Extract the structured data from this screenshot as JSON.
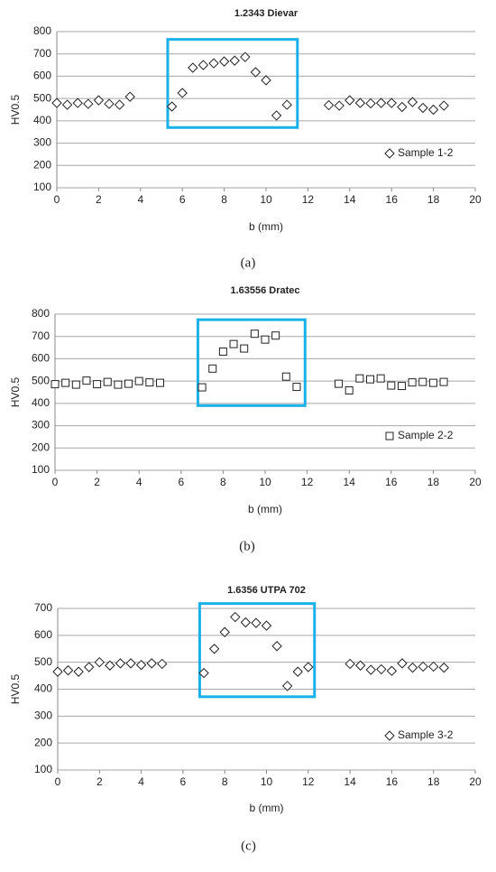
{
  "chart_data": [
    {
      "type": "scatter",
      "title": "1.2343 Dievar",
      "x_label": "b (mm)",
      "y_label": "HV0.5",
      "caption": "(a)",
      "xlim": [
        0,
        20
      ],
      "xticks": [
        0,
        2,
        4,
        6,
        8,
        10,
        12,
        14,
        16,
        18,
        20
      ],
      "ylim": [
        100,
        800
      ],
      "yticks": [
        100,
        200,
        300,
        400,
        500,
        600,
        700,
        800
      ],
      "grid": true,
      "legend": "lower right",
      "highlight": {
        "x": [
          5.3,
          11.5
        ],
        "y": [
          370,
          765
        ],
        "color": "#1ab0e8"
      },
      "series": [
        {
          "name": "Sample 1-2",
          "marker": "diamond",
          "color": "#222222",
          "x": [
            0,
            0.5,
            1,
            1.5,
            2,
            2.5,
            3,
            3.5,
            5.5,
            6,
            6.5,
            7,
            7.5,
            8,
            8.5,
            9,
            9.5,
            10,
            10.5,
            11,
            13,
            13.5,
            14,
            14.5,
            15,
            15.5,
            16,
            16.5,
            17,
            17.5,
            18,
            18.5
          ],
          "values": [
            480,
            472,
            480,
            476,
            492,
            476,
            472,
            508,
            464,
            525,
            638,
            650,
            658,
            666,
            670,
            686,
            618,
            582,
            424,
            472,
            470,
            468,
            492,
            480,
            478,
            480,
            480,
            462,
            484,
            458,
            450,
            468
          ]
        }
      ]
    },
    {
      "type": "scatter",
      "title": "1.63556  Dratec",
      "x_label": "b  (mm)",
      "y_label": "HV0.5",
      "caption": "(b)",
      "xlim": [
        0,
        20
      ],
      "xticks": [
        0,
        2,
        4,
        6,
        8,
        10,
        12,
        14,
        16,
        18,
        20
      ],
      "ylim": [
        100,
        800
      ],
      "yticks": [
        100,
        200,
        300,
        400,
        500,
        600,
        700,
        800
      ],
      "grid": true,
      "legend": "lower right",
      "highlight": {
        "x": [
          6.8,
          11.9
        ],
        "y": [
          390,
          775
        ],
        "color": "#1ab0e8"
      },
      "series": [
        {
          "name": "Sample 2-2",
          "marker": "square",
          "color": "#222222",
          "x": [
            0,
            0.5,
            1,
            1.5,
            2,
            2.5,
            3,
            3.5,
            4,
            4.5,
            5,
            7,
            7.5,
            8,
            8.5,
            9,
            9.5,
            10,
            10.5,
            11,
            11.5,
            13.5,
            14,
            14.5,
            15,
            15.5,
            16,
            16.5,
            17,
            17.5,
            18,
            18.5
          ],
          "values": [
            486,
            492,
            484,
            502,
            486,
            496,
            484,
            488,
            500,
            494,
            492,
            472,
            556,
            632,
            666,
            646,
            712,
            686,
            704,
            520,
            474,
            488,
            458,
            512,
            508,
            512,
            480,
            478,
            494,
            496,
            492,
            496
          ]
        }
      ]
    },
    {
      "type": "scatter",
      "title": "1.6356 UTPA 702",
      "x_label": "b  (mm)",
      "y_label": "HV0.5",
      "caption": "(c)",
      "xlim": [
        0,
        20
      ],
      "xticks": [
        0,
        2,
        4,
        6,
        8,
        10,
        12,
        14,
        16,
        18,
        20
      ],
      "ylim": [
        100,
        700
      ],
      "yticks": [
        100,
        200,
        300,
        400,
        500,
        600,
        700
      ],
      "grid": true,
      "legend": "lower right",
      "highlight": {
        "x": [
          6.8,
          12.3
        ],
        "y": [
          372,
          718
        ],
        "color": "#1ab0e8"
      },
      "series": [
        {
          "name": "Sample 3-2",
          "marker": "diamond",
          "color": "#222222",
          "x": [
            0,
            0.5,
            1,
            1.5,
            2,
            2.5,
            3,
            3.5,
            4,
            4.5,
            5,
            7,
            7.5,
            8,
            8.5,
            9,
            9.5,
            10,
            10.5,
            11,
            11.5,
            12,
            14,
            14.5,
            15,
            15.5,
            16,
            16.5,
            17,
            17.5,
            18,
            18.5
          ],
          "values": [
            465,
            470,
            465,
            482,
            500,
            488,
            496,
            496,
            490,
            496,
            494,
            460,
            550,
            612,
            668,
            648,
            646,
            636,
            560,
            412,
            465,
            482,
            494,
            488,
            472,
            474,
            468,
            496,
            480,
            484,
            484,
            480
          ]
        }
      ]
    }
  ]
}
